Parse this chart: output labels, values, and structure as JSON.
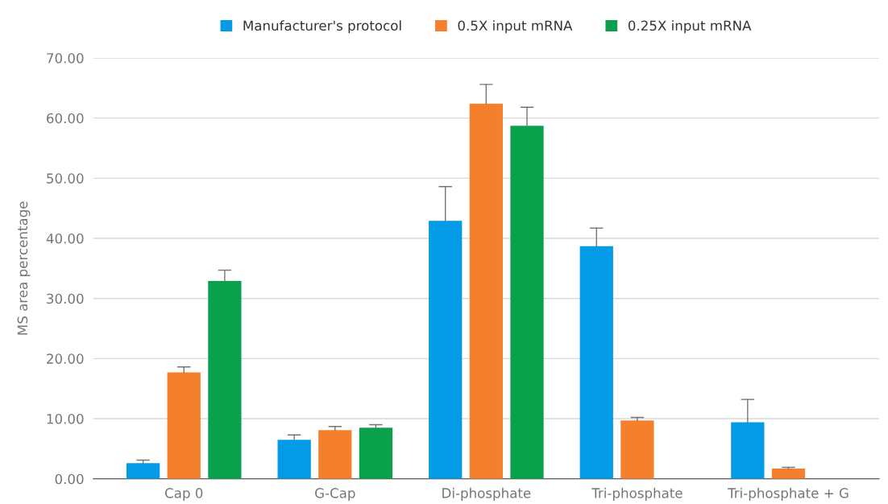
{
  "chart_data": {
    "type": "bar",
    "ylabel": "MS area percentage",
    "categories": [
      "Cap 0",
      "G-Cap",
      "Di-phosphate",
      "Tri-phosphate",
      "Tri-phosphate + G"
    ],
    "series": [
      {
        "name": "Manufacturer's protocol",
        "color": "#039be5",
        "values": [
          2.6,
          6.5,
          42.9,
          38.7,
          9.4
        ],
        "errors": [
          [
            2.6,
            3.1
          ],
          [
            6.5,
            7.3
          ],
          [
            42.9,
            48.6
          ],
          [
            38.7,
            41.7
          ],
          [
            9.4,
            13.2
          ]
        ]
      },
      {
        "name": "0.5X input mRNA",
        "color": "#f4802d",
        "values": [
          17.7,
          8.1,
          62.4,
          9.7,
          1.7
        ],
        "errors": [
          [
            17.7,
            18.6
          ],
          [
            8.1,
            8.7
          ],
          [
            62.4,
            65.6
          ],
          [
            9.7,
            10.2
          ],
          [
            1.7,
            1.9
          ]
        ]
      },
      {
        "name": "0.25X input mRNA",
        "color": "#0aa14c",
        "values": [
          32.9,
          8.5,
          58.7,
          0,
          0
        ],
        "errors": [
          [
            32.9,
            34.7
          ],
          [
            8.5,
            9.0
          ],
          [
            58.7,
            61.8
          ],
          null,
          null
        ]
      }
    ],
    "ylim": [
      0,
      70
    ],
    "yticks": [
      {
        "value": 0,
        "label": "0.00"
      },
      {
        "value": 10,
        "label": "10.00"
      },
      {
        "value": 20,
        "label": "20.00"
      },
      {
        "value": 30,
        "label": "30.00"
      },
      {
        "value": 40,
        "label": "40.00"
      },
      {
        "value": 50,
        "label": "50.00"
      },
      {
        "value": 60,
        "label": "60.00"
      },
      {
        "value": 70,
        "label": "70.00"
      }
    ],
    "grid": "y",
    "legend": "top"
  }
}
